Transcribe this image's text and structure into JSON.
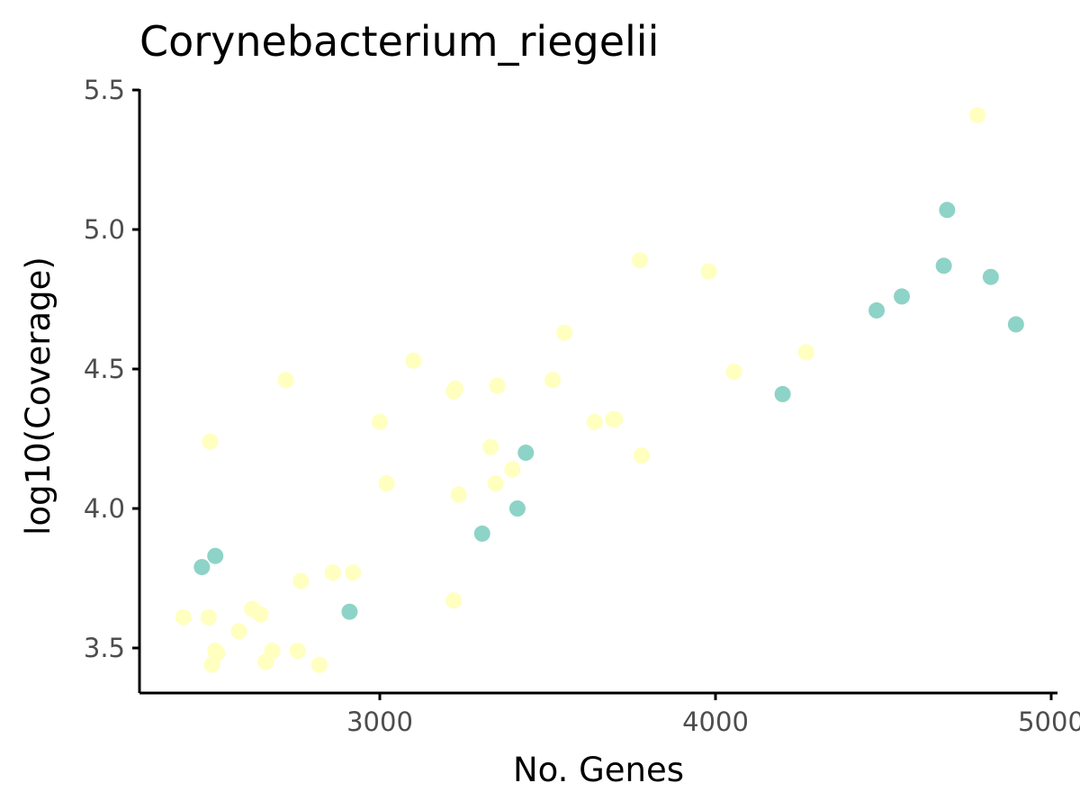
{
  "chart_data": {
    "type": "scatter",
    "title": "Corynebacterium_riegelii",
    "xlabel": "No. Genes",
    "ylabel": "log10(Coverage)",
    "xlim": [
      2280,
      5010
    ],
    "ylim": [
      3.34,
      5.52
    ],
    "x_ticks": [
      3000,
      4000,
      5000
    ],
    "x_tick_labels": [
      "3000",
      "4000",
      "5000"
    ],
    "y_ticks": [
      3.5,
      4.0,
      4.5,
      5.0,
      5.5
    ],
    "y_tick_labels": [
      "3.5",
      "4.0",
      "4.5",
      "5.0",
      "5.5"
    ],
    "grid": false,
    "legend": "none",
    "colors": {
      "yellow": "#ffffbf",
      "teal": "#8ed3c7"
    },
    "series": [
      {
        "color": "yellow",
        "points": [
          [
            2415,
            3.61
          ],
          [
            2490,
            3.61
          ],
          [
            2495,
            4.24
          ],
          [
            2500,
            3.44
          ],
          [
            2510,
            3.49
          ],
          [
            2515,
            3.48
          ],
          [
            2580,
            3.56
          ],
          [
            2620,
            3.64
          ],
          [
            2645,
            3.62
          ],
          [
            2660,
            3.45
          ],
          [
            2680,
            3.49
          ],
          [
            2720,
            4.46
          ],
          [
            2755,
            3.49
          ],
          [
            2765,
            3.74
          ],
          [
            2820,
            3.44
          ],
          [
            2860,
            3.77
          ],
          [
            2920,
            3.77
          ],
          [
            3000,
            4.31
          ],
          [
            3020,
            4.09
          ],
          [
            3100,
            4.53
          ],
          [
            3220,
            4.42
          ],
          [
            3225,
            4.43
          ],
          [
            3220,
            3.67
          ],
          [
            3235,
            4.05
          ],
          [
            3330,
            4.22
          ],
          [
            3345,
            4.09
          ],
          [
            3350,
            4.44
          ],
          [
            3395,
            4.14
          ],
          [
            3515,
            4.46
          ],
          [
            3550,
            4.63
          ],
          [
            3640,
            4.31
          ],
          [
            3695,
            4.32
          ],
          [
            3700,
            4.32
          ],
          [
            3775,
            4.89
          ],
          [
            3780,
            4.19
          ],
          [
            3980,
            4.85
          ],
          [
            4055,
            4.49
          ],
          [
            4270,
            4.56
          ],
          [
            4780,
            5.41
          ]
        ]
      },
      {
        "color": "teal",
        "points": [
          [
            2470,
            3.79
          ],
          [
            2510,
            3.83
          ],
          [
            2910,
            3.63
          ],
          [
            3305,
            3.91
          ],
          [
            3410,
            4.0
          ],
          [
            3435,
            4.2
          ],
          [
            4200,
            4.41
          ],
          [
            4480,
            4.71
          ],
          [
            4555,
            4.76
          ],
          [
            4680,
            4.87
          ],
          [
            4690,
            5.07
          ],
          [
            4820,
            4.83
          ],
          [
            4895,
            4.66
          ]
        ]
      }
    ]
  }
}
